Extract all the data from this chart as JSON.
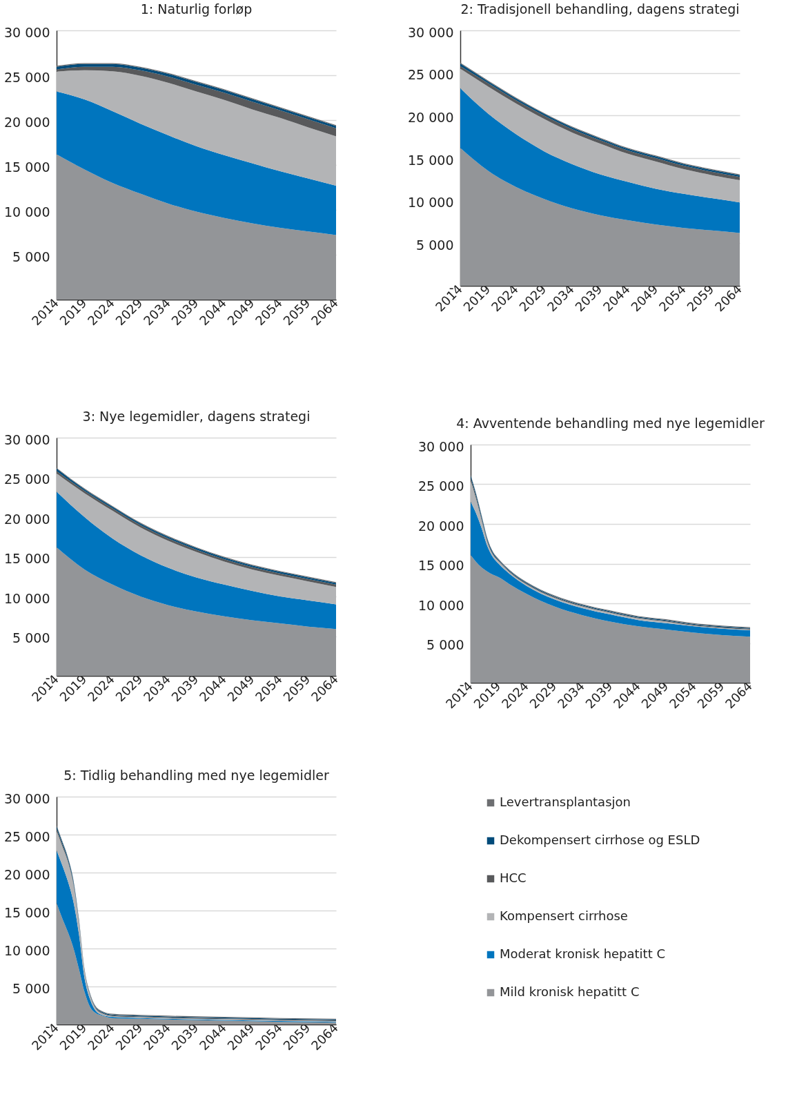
{
  "chart_data": [
    {
      "type": "area",
      "title": "1: Naturlig forløp",
      "stacked": true,
      "grid": "y",
      "xlim": [
        2014,
        2064
      ],
      "xticks": [
        2014,
        2019,
        2024,
        2029,
        2034,
        2039,
        2044,
        2049,
        2054,
        2059,
        2064
      ],
      "ylim": [
        0,
        30000
      ],
      "yticks": [
        {
          "value": 0,
          "label": "-"
        },
        {
          "value": 5000,
          "label": "5 000"
        },
        {
          "value": 10000,
          "label": "10 000"
        },
        {
          "value": 15000,
          "label": "15 000"
        },
        {
          "value": 20000,
          "label": "20 000"
        },
        {
          "value": 25000,
          "label": "25 000"
        },
        {
          "value": 30000,
          "label": "30 000"
        }
      ],
      "x": [
        2014,
        2019,
        2024,
        2029,
        2034,
        2039,
        2044,
        2049,
        2054,
        2059,
        2064
      ],
      "series": [
        {
          "color": "#939598",
          "values": [
            16200,
            14500,
            13000,
            11800,
            10700,
            9800,
            9100,
            8500,
            8000,
            7600,
            7200
          ]
        },
        {
          "color": "#0075be",
          "values": [
            7000,
            7800,
            8000,
            7800,
            7600,
            7300,
            7000,
            6700,
            6300,
            5900,
            5500
          ]
        },
        {
          "color": "#b3b4b6",
          "values": [
            2200,
            3250,
            4450,
            5350,
            5850,
            6100,
            6150,
            6000,
            5950,
            5700,
            5500
          ]
        },
        {
          "color": "#58595b",
          "values": [
            250,
            400,
            500,
            600,
            700,
            750,
            800,
            850,
            850,
            900,
            900
          ]
        },
        {
          "color": "#004b7a",
          "values": [
            300,
            300,
            300,
            300,
            300,
            300,
            300,
            300,
            250,
            250,
            250
          ]
        },
        {
          "color": "#6d6e71",
          "values": [
            100,
            100,
            100,
            100,
            100,
            100,
            100,
            100,
            100,
            100,
            100
          ]
        }
      ]
    },
    {
      "type": "area",
      "title": "2: Tradisjonell behandling, dagens strategi",
      "stacked": true,
      "grid": "y",
      "xlim": [
        2014,
        2064
      ],
      "xticks": [
        2014,
        2019,
        2024,
        2029,
        2034,
        2039,
        2044,
        2049,
        2054,
        2059,
        2064
      ],
      "ylim": [
        0,
        30000
      ],
      "yticks": [
        {
          "value": 0,
          "label": "-"
        },
        {
          "value": 5000,
          "label": "5 000"
        },
        {
          "value": 10000,
          "label": "10 000"
        },
        {
          "value": 15000,
          "label": "15 000"
        },
        {
          "value": 20000,
          "label": "20 000"
        },
        {
          "value": 25000,
          "label": "25 000"
        },
        {
          "value": 30000,
          "label": "30 000"
        }
      ],
      "x": [
        2014,
        2019,
        2024,
        2029,
        2034,
        2039,
        2044,
        2049,
        2054,
        2059,
        2064
      ],
      "series": [
        {
          "color": "#939598",
          "values": [
            16200,
            13500,
            11600,
            10200,
            9100,
            8300,
            7700,
            7200,
            6800,
            6500,
            6200
          ]
        },
        {
          "color": "#0075be",
          "values": [
            7000,
            6700,
            6200,
            5600,
            5200,
            4800,
            4500,
            4200,
            4000,
            3800,
            3600
          ]
        },
        {
          "color": "#b3b4b6",
          "values": [
            2300,
            3200,
            3600,
            3800,
            3700,
            3600,
            3300,
            3200,
            2900,
            2700,
            2600
          ]
        },
        {
          "color": "#58595b",
          "values": [
            300,
            400,
            400,
            400,
            400,
            400,
            400,
            400,
            400,
            400,
            400
          ]
        },
        {
          "color": "#004b7a",
          "values": [
            300,
            200,
            200,
            200,
            200,
            200,
            200,
            200,
            200,
            200,
            200
          ]
        },
        {
          "color": "#6d6e71",
          "values": [
            100,
            100,
            100,
            100,
            100,
            100,
            100,
            100,
            100,
            100,
            100
          ]
        }
      ]
    },
    {
      "type": "area",
      "title": "3: Nye legemidler, dagens strategi",
      "stacked": true,
      "grid": "y",
      "xlim": [
        2014,
        2064
      ],
      "xticks": [
        2014,
        2019,
        2024,
        2029,
        2034,
        2039,
        2044,
        2049,
        2054,
        2059,
        2064
      ],
      "ylim": [
        0,
        30000
      ],
      "yticks": [
        {
          "value": 0,
          "label": "-"
        },
        {
          "value": 5000,
          "label": "5 000"
        },
        {
          "value": 10000,
          "label": "10 000"
        },
        {
          "value": 15000,
          "label": "15 000"
        },
        {
          "value": 20000,
          "label": "20 000"
        },
        {
          "value": 25000,
          "label": "25 000"
        },
        {
          "value": 30000,
          "label": "30 000"
        }
      ],
      "x": [
        2014,
        2019,
        2024,
        2029,
        2034,
        2039,
        2044,
        2049,
        2054,
        2059,
        2064
      ],
      "series": [
        {
          "color": "#939598",
          "values": [
            16200,
            13400,
            11500,
            10000,
            8900,
            8100,
            7500,
            7000,
            6600,
            6200,
            5900
          ]
        },
        {
          "color": "#0075be",
          "values": [
            7000,
            6600,
            5800,
            5200,
            4700,
            4300,
            4000,
            3700,
            3400,
            3300,
            3100
          ]
        },
        {
          "color": "#b3b4b6",
          "values": [
            2300,
            3000,
            3500,
            3500,
            3400,
            3200,
            2900,
            2700,
            2600,
            2400,
            2200
          ]
        },
        {
          "color": "#58595b",
          "values": [
            300,
            300,
            300,
            300,
            300,
            300,
            300,
            300,
            300,
            300,
            300
          ]
        },
        {
          "color": "#004b7a",
          "values": [
            300,
            200,
            200,
            200,
            200,
            200,
            200,
            200,
            200,
            200,
            200
          ]
        },
        {
          "color": "#6d6e71",
          "values": [
            100,
            100,
            100,
            100,
            100,
            100,
            100,
            100,
            100,
            100,
            100
          ]
        }
      ]
    },
    {
      "type": "area",
      "title": "4: Avventende behandling med nye legemidler",
      "stacked": true,
      "grid": "y",
      "xlim": [
        2014,
        2064
      ],
      "xticks": [
        2014,
        2019,
        2024,
        2029,
        2034,
        2039,
        2044,
        2049,
        2054,
        2059,
        2064
      ],
      "ylim": [
        0,
        30000
      ],
      "yticks": [
        {
          "value": 0,
          "label": "-"
        },
        {
          "value": 5000,
          "label": "5 000"
        },
        {
          "value": 10000,
          "label": "10 000"
        },
        {
          "value": 15000,
          "label": "15 000"
        },
        {
          "value": 20000,
          "label": "20 000"
        },
        {
          "value": 25000,
          "label": "25 000"
        },
        {
          "value": 30000,
          "label": "30 000"
        }
      ],
      "x": [
        2014,
        2015,
        2016,
        2017,
        2018,
        2019,
        2021,
        2024,
        2029,
        2034,
        2039,
        2044,
        2049,
        2054,
        2059,
        2064
      ],
      "series": [
        {
          "color": "#939598",
          "values": [
            16100,
            15200,
            14500,
            14000,
            13600,
            13300,
            12400,
            11200,
            9600,
            8500,
            7700,
            7100,
            6700,
            6300,
            6000,
            5800
          ]
        },
        {
          "color": "#0075be",
          "values": [
            6700,
            6100,
            4900,
            3200,
            2200,
            1700,
            1300,
            1000,
            900,
            900,
            900,
            800,
            800,
            800,
            800,
            800
          ]
        },
        {
          "color": "#b3b4b6",
          "values": [
            2700,
            1800,
            1000,
            500,
            300,
            300,
            200,
            200,
            200,
            200,
            200,
            200,
            200,
            100,
            100,
            100
          ]
        },
        {
          "color": "#58595b",
          "values": [
            300,
            300,
            200,
            200,
            100,
            100,
            100,
            100,
            100,
            100,
            100,
            100,
            100,
            100,
            100,
            100
          ]
        },
        {
          "color": "#004b7a",
          "values": [
            300,
            300,
            300,
            200,
            200,
            100,
            100,
            100,
            100,
            100,
            100,
            100,
            100,
            100,
            100,
            100
          ]
        },
        {
          "color": "#6d6e71",
          "values": [
            100,
            100,
            100,
            100,
            100,
            100,
            100,
            100,
            100,
            100,
            100,
            100,
            100,
            100,
            100,
            100
          ]
        }
      ]
    },
    {
      "type": "area",
      "title": "5: Tidlig behandling med nye legemidler",
      "stacked": true,
      "grid": "y",
      "legend": "right",
      "xlim": [
        2014,
        2064
      ],
      "xticks": [
        2014,
        2019,
        2024,
        2029,
        2034,
        2039,
        2044,
        2049,
        2054,
        2059,
        2064
      ],
      "ylim": [
        0,
        30000
      ],
      "yticks": [
        {
          "value": 0,
          "label": "-"
        },
        {
          "value": 5000,
          "label": "5 000"
        },
        {
          "value": 10000,
          "label": "10 000"
        },
        {
          "value": 15000,
          "label": "15 000"
        },
        {
          "value": 20000,
          "label": "20 000"
        },
        {
          "value": 25000,
          "label": "25 000"
        },
        {
          "value": 30000,
          "label": "30 000"
        }
      ],
      "x": [
        2014,
        2015,
        2016,
        2017,
        2018,
        2019,
        2020,
        2021,
        2022,
        2024,
        2029,
        2034,
        2044,
        2054,
        2064
      ],
      "series": [
        {
          "name": "Mild kronisk hepatitt C",
          "color": "#939598",
          "values": [
            16000,
            14000,
            12200,
            10100,
            7300,
            4300,
            2300,
            1500,
            1200,
            850,
            750,
            650,
            500,
            350,
            250
          ]
        },
        {
          "name": "Moderat kronisk hepatitt C",
          "color": "#0075be",
          "values": [
            6900,
            7000,
            6700,
            6100,
            4600,
            1800,
            1000,
            300,
            100,
            150,
            100,
            100,
            100,
            100,
            100
          ]
        },
        {
          "name": "Kompensert cirrhose",
          "color": "#b3b4b6",
          "values": [
            2600,
            2500,
            2600,
            2300,
            1600,
            900,
            500,
            300,
            200,
            100,
            100,
            100,
            100,
            100,
            100
          ]
        },
        {
          "name": "HCC",
          "color": "#58595b",
          "values": [
            300,
            300,
            200,
            200,
            100,
            100,
            100,
            100,
            100,
            100,
            100,
            100,
            100,
            100,
            100
          ]
        },
        {
          "name": "Dekompensert cirrhose og ESLD",
          "color": "#004b7a",
          "values": [
            300,
            300,
            300,
            300,
            200,
            100,
            100,
            100,
            100,
            100,
            100,
            100,
            100,
            100,
            100
          ]
        },
        {
          "name": "Levertransplantasjon",
          "color": "#6d6e71",
          "values": [
            100,
            100,
            100,
            100,
            100,
            100,
            100,
            100,
            100,
            100,
            100,
            100,
            100,
            100,
            100
          ]
        }
      ]
    }
  ]
}
